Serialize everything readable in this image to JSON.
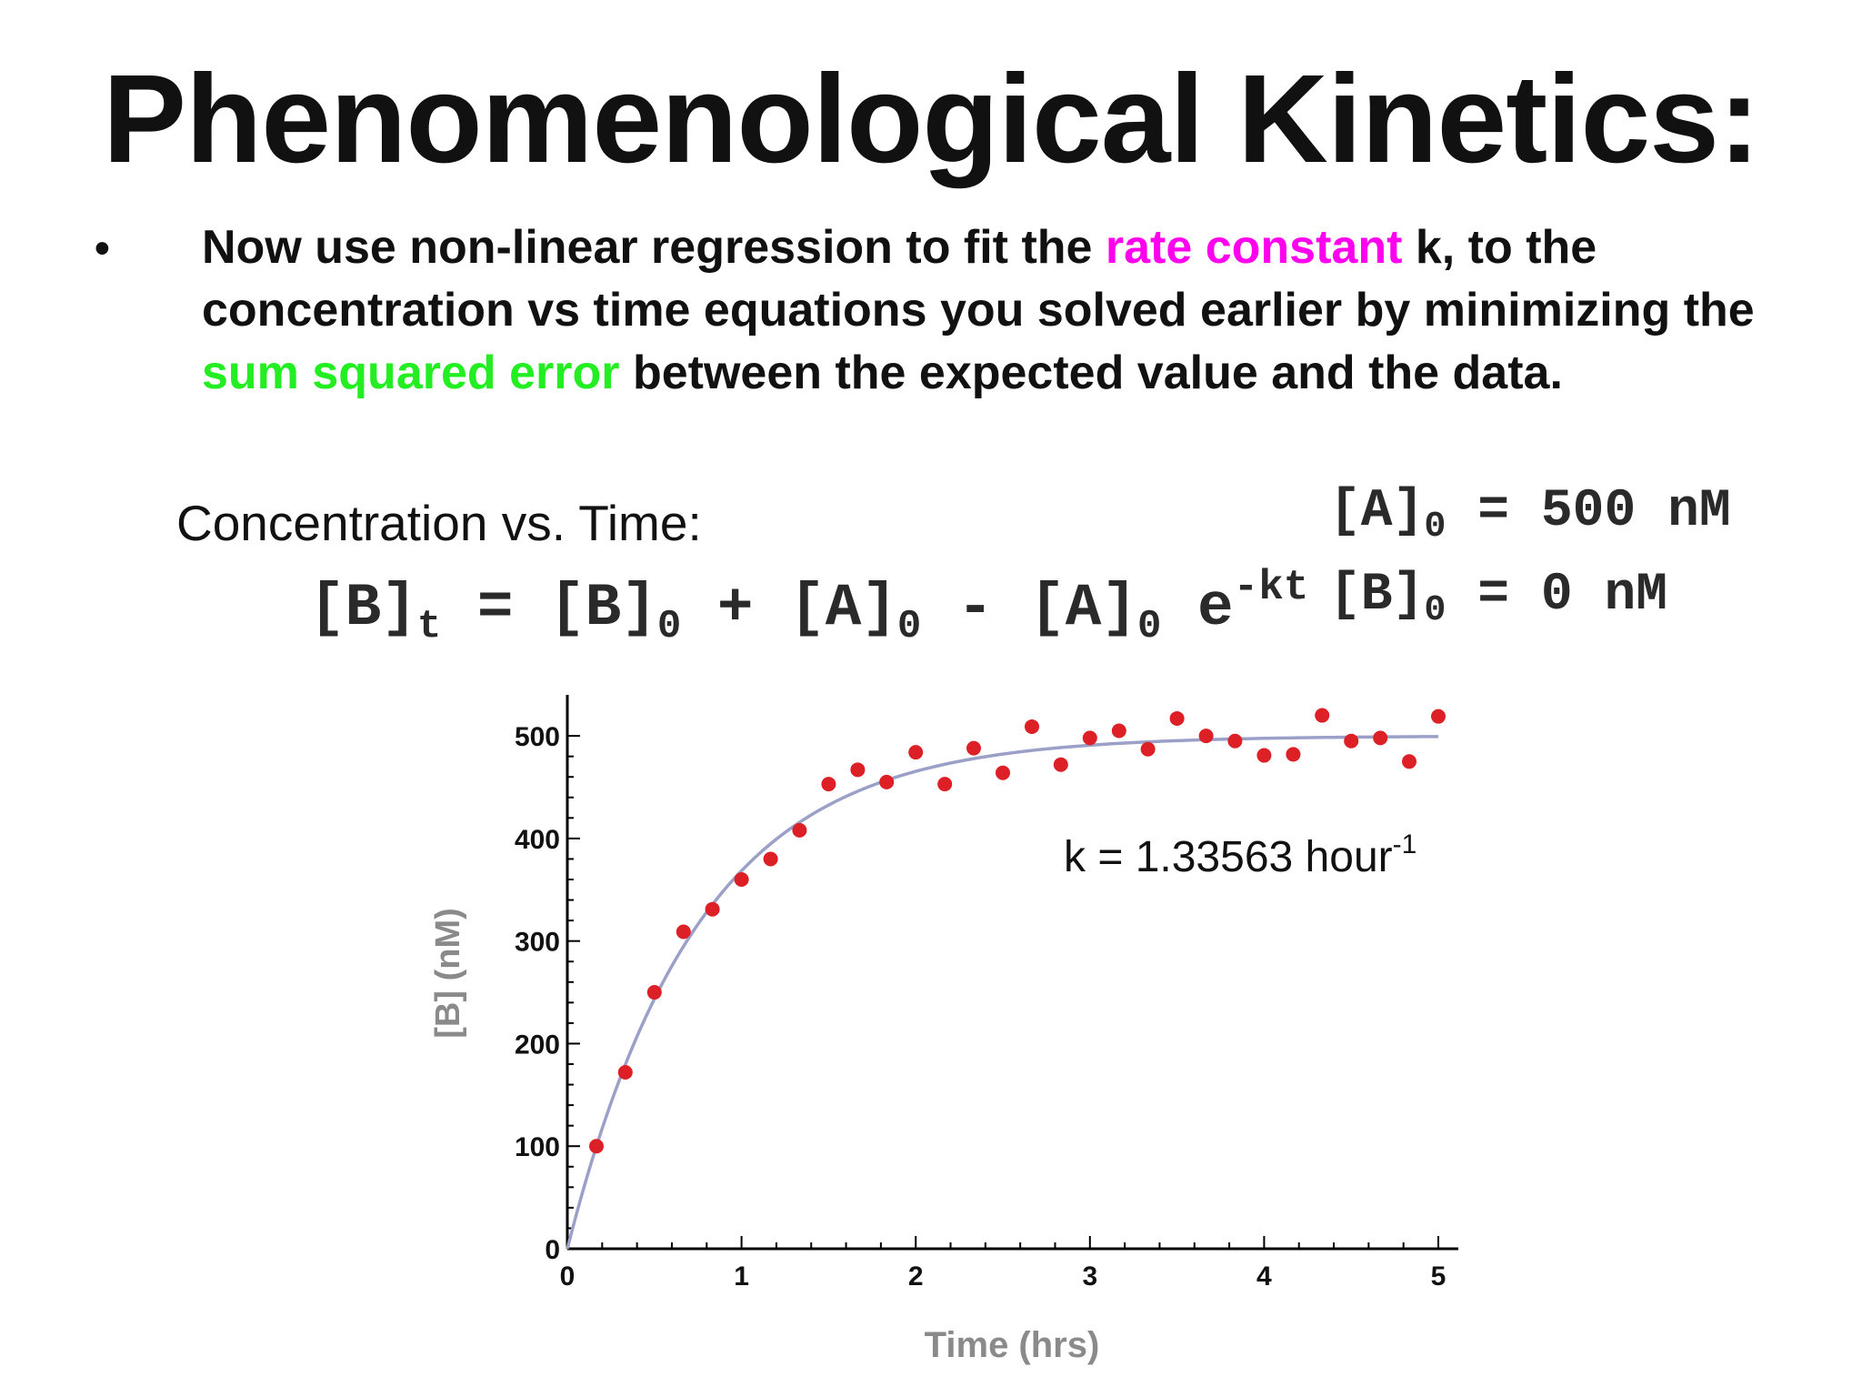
{
  "slide": {
    "title": "Phenomenological Kinetics:",
    "bullet_mark": "•",
    "bullet": {
      "part1": "Now use non-linear regression to fit the ",
      "rate_constant": "rate constant",
      "part2": " k, to the concentration vs time equations you solved earlier by minimizing the ",
      "sum_squared_error": "sum squared error",
      "part3": " between the expected value and the data."
    },
    "conc_label": "Concentration vs. Time:",
    "equation": {
      "lhs": "[B]",
      "lhs_sub": "t",
      "eq": " = [B]",
      "sub0a": "0",
      "plus": " + [A]",
      "sub0b": "0",
      "minus": " - [A]",
      "sub0c": "0",
      "e": " e",
      "exp": "-kt"
    },
    "params": {
      "a0_label": "[A]",
      "a0_sub": "0",
      "a0_value": " = 500 nM",
      "b0_label": "[B]",
      "b0_sub": "0",
      "b0_value": " = 0 nM"
    },
    "colors": {
      "highlight_pink": "#ff00ee",
      "highlight_green": "#22ee22"
    }
  },
  "chart_data": {
    "type": "scatter",
    "xlabel": "Time (hrs)",
    "ylabel": "[B] (nM)",
    "xlim": [
      0,
      5
    ],
    "ylim": [
      0,
      540
    ],
    "x_ticks": [
      "0",
      "1",
      "2",
      "3",
      "4",
      "5"
    ],
    "y_ticks": [
      "0",
      "100",
      "200",
      "300",
      "400",
      "500"
    ],
    "annotation": {
      "text": "k = 1.33563 hour",
      "sup": "-1"
    },
    "fit": {
      "A0": 500,
      "B0": 0,
      "k": 1.33563,
      "color": "#9aa0c8"
    },
    "points_color": "#dd1f26",
    "series": [
      {
        "x": [
          0.167,
          0.333,
          0.5,
          0.667,
          0.833,
          1.0,
          1.167,
          1.333,
          1.5,
          1.667,
          1.833,
          2.0,
          2.167,
          2.333,
          2.5,
          2.667,
          2.833,
          3.0,
          3.167,
          3.333,
          3.5,
          3.667,
          3.833,
          4.0,
          4.167,
          4.333,
          4.5,
          4.667,
          4.833,
          5.0
        ],
        "y": [
          100,
          172,
          250,
          309,
          331,
          360,
          380,
          408,
          453,
          467,
          455,
          484,
          453,
          488,
          464,
          509,
          472,
          498,
          505,
          487,
          517,
          500,
          495,
          481,
          482,
          520,
          495,
          498,
          475,
          519
        ]
      }
    ]
  }
}
